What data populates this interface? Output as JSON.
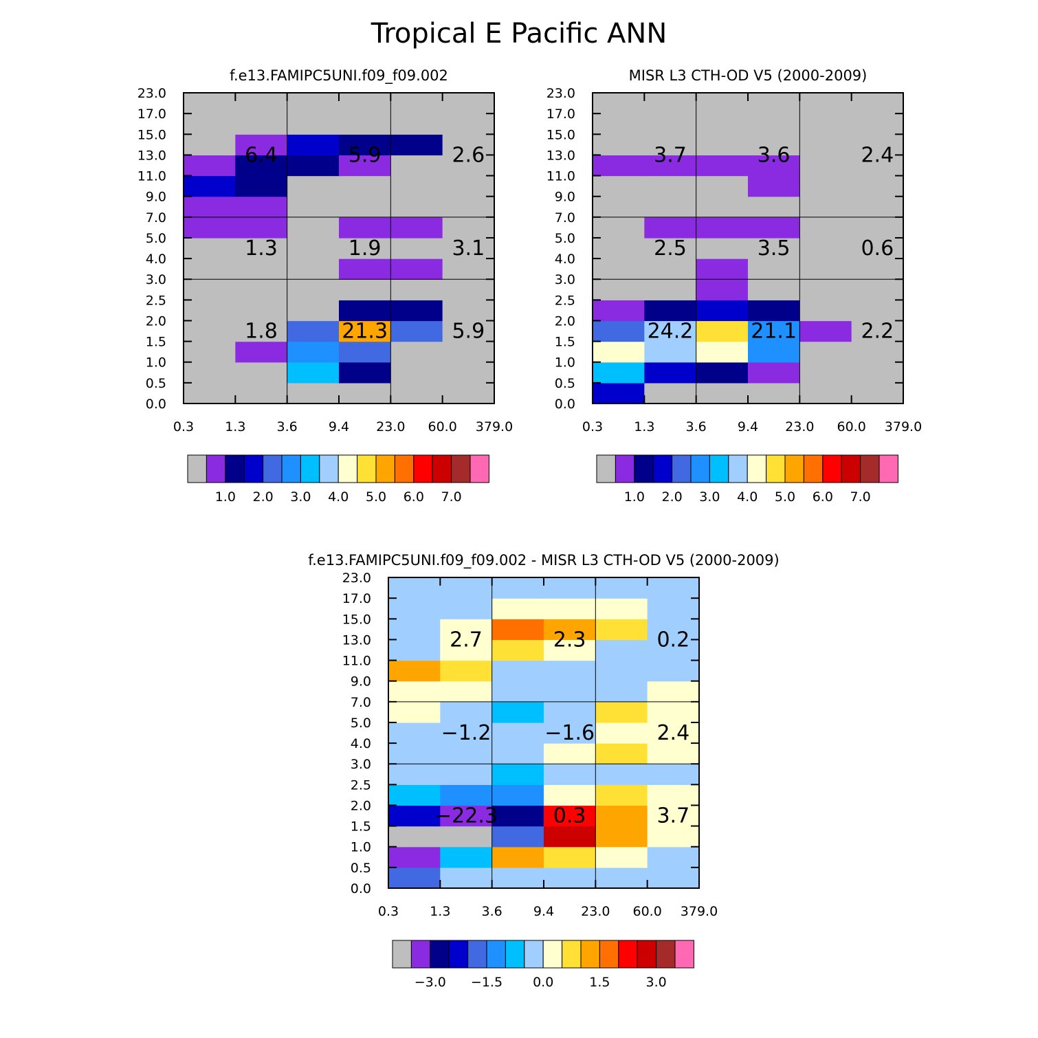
{
  "page_title": "Tropical E Pacific ANN",
  "x_tick_labels": [
    "0.3",
    "1.3",
    "3.6",
    "9.4",
    "23.0",
    "60.0",
    "379.0"
  ],
  "y_tick_labels": [
    "0.0",
    "0.5",
    "1.0",
    "1.5",
    "2.0",
    "2.5",
    "3.0",
    "4.0",
    "5.0",
    "7.0",
    "9.0",
    "11.0",
    "13.0",
    "15.0",
    "17.0",
    "23.0"
  ],
  "colors": {
    "palette": [
      "#bebebe",
      "#8a2be2",
      "#00008b",
      "#0000cd",
      "#4169e1",
      "#1e90ff",
      "#00bfff",
      "#a0cfff",
      "#ffffd0",
      "#ffe135",
      "#ffa500",
      "#ff7000",
      "#ff0000",
      "#cd0000",
      "#a52a2a",
      "#ff69b4"
    ]
  },
  "chart_data": [
    {
      "type": "heatmap",
      "title": "f.e13.FAMIPC5UNI.f09_f09.002",
      "grid_note": "cells[row][col], row 0 = bottom (0.0-0.5), col 0 = left (0.3-1.3); values are palette color indices",
      "cells": [
        [
          0,
          0,
          0,
          0,
          0,
          0
        ],
        [
          0,
          0,
          6,
          2,
          0,
          0
        ],
        [
          0,
          1,
          5,
          4,
          0,
          0
        ],
        [
          0,
          0,
          4,
          10,
          4,
          0
        ],
        [
          0,
          0,
          0,
          2,
          2,
          0
        ],
        [
          0,
          0,
          0,
          0,
          0,
          0
        ],
        [
          0,
          0,
          0,
          1,
          1,
          0
        ],
        [
          0,
          0,
          0,
          0,
          0,
          0
        ],
        [
          1,
          1,
          0,
          1,
          1,
          0
        ],
        [
          1,
          1,
          0,
          0,
          0,
          0
        ],
        [
          3,
          2,
          0,
          0,
          0,
          0
        ],
        [
          1,
          2,
          2,
          1,
          0,
          0
        ],
        [
          0,
          1,
          3,
          2,
          2,
          0
        ],
        [
          0,
          0,
          0,
          0,
          0,
          0
        ],
        [
          0,
          0,
          0,
          0,
          0,
          0
        ]
      ],
      "section_totals": [
        {
          "label": "6.4",
          "col": 1,
          "band": "high"
        },
        {
          "label": "5.9",
          "col": 3,
          "band": "high"
        },
        {
          "label": "2.6",
          "col": 5,
          "band": "high"
        },
        {
          "label": "1.3",
          "col": 1,
          "band": "mid"
        },
        {
          "label": "1.9",
          "col": 3,
          "band": "mid"
        },
        {
          "label": "3.1",
          "col": 5,
          "band": "mid"
        },
        {
          "label": "1.8",
          "col": 1,
          "band": "low"
        },
        {
          "label": "21.3",
          "col": 3,
          "band": "low"
        },
        {
          "label": "5.9",
          "col": 5,
          "band": "low"
        }
      ],
      "colorbar": {
        "labels": [
          "1.0",
          "2.0",
          "3.0",
          "4.0",
          "5.0",
          "6.0",
          "7.0"
        ]
      }
    },
    {
      "type": "heatmap",
      "title": "MISR L3 CTH-OD V5 (2000-2009)",
      "grid_note": "cells[row][col], row 0 = bottom (0.0-0.5), col 0 = left (0.3-1.3); values are palette color indices",
      "cells": [
        [
          3,
          0,
          0,
          0,
          0,
          0
        ],
        [
          6,
          3,
          2,
          1,
          0,
          0
        ],
        [
          8,
          7,
          8,
          5,
          0,
          0
        ],
        [
          4,
          7,
          9,
          5,
          1,
          0
        ],
        [
          1,
          2,
          3,
          2,
          0,
          0
        ],
        [
          0,
          0,
          1,
          0,
          0,
          0
        ],
        [
          0,
          0,
          1,
          0,
          0,
          0
        ],
        [
          0,
          0,
          0,
          0,
          0,
          0
        ],
        [
          0,
          1,
          1,
          1,
          0,
          0
        ],
        [
          0,
          0,
          0,
          0,
          0,
          0
        ],
        [
          0,
          0,
          0,
          1,
          0,
          0
        ],
        [
          1,
          1,
          1,
          1,
          0,
          0
        ],
        [
          0,
          0,
          0,
          0,
          0,
          0
        ],
        [
          0,
          0,
          0,
          0,
          0,
          0
        ],
        [
          0,
          0,
          0,
          0,
          0,
          0
        ]
      ],
      "section_totals": [
        {
          "label": "3.7",
          "col": 1,
          "band": "high"
        },
        {
          "label": "3.6",
          "col": 3,
          "band": "high"
        },
        {
          "label": "2.4",
          "col": 5,
          "band": "high"
        },
        {
          "label": "2.5",
          "col": 1,
          "band": "mid"
        },
        {
          "label": "3.5",
          "col": 3,
          "band": "mid"
        },
        {
          "label": "0.6",
          "col": 5,
          "band": "mid"
        },
        {
          "label": "24.2",
          "col": 1,
          "band": "low"
        },
        {
          "label": "21.1",
          "col": 3,
          "band": "low"
        },
        {
          "label": "2.2",
          "col": 5,
          "band": "low"
        }
      ],
      "colorbar": {
        "labels": [
          "1.0",
          "2.0",
          "3.0",
          "4.0",
          "5.0",
          "6.0",
          "7.0"
        ]
      }
    },
    {
      "type": "heatmap",
      "title": "f.e13.FAMIPC5UNI.f09_f09.002 - MISR L3 CTH-OD V5 (2000-2009)",
      "grid_note": "cells[row][col], row 0 = bottom (0.0-0.5), col 0 = left (0.3-1.3); values are palette color indices",
      "cells": [
        [
          4,
          7,
          7,
          7,
          7,
          7
        ],
        [
          1,
          6,
          10,
          9,
          8,
          7
        ],
        [
          0,
          0,
          4,
          13,
          10,
          8
        ],
        [
          3,
          1,
          2,
          12,
          10,
          8
        ],
        [
          6,
          5,
          5,
          8,
          9,
          8
        ],
        [
          7,
          7,
          6,
          7,
          7,
          7
        ],
        [
          7,
          7,
          7,
          8,
          9,
          8
        ],
        [
          7,
          7,
          7,
          7,
          8,
          8
        ],
        [
          8,
          7,
          6,
          7,
          9,
          8
        ],
        [
          8,
          8,
          7,
          7,
          7,
          8
        ],
        [
          10,
          9,
          7,
          7,
          7,
          7
        ],
        [
          7,
          8,
          9,
          8,
          7,
          7
        ],
        [
          7,
          8,
          11,
          10,
          9,
          7
        ],
        [
          7,
          7,
          8,
          8,
          8,
          7
        ],
        [
          7,
          7,
          7,
          7,
          7,
          7
        ]
      ],
      "section_totals": [
        {
          "label": "2.7",
          "col": 1,
          "band": "high"
        },
        {
          "label": "2.3",
          "col": 3,
          "band": "high"
        },
        {
          "label": "0.2",
          "col": 5,
          "band": "high"
        },
        {
          "label": "−1.2",
          "col": 1,
          "band": "mid"
        },
        {
          "label": "−1.6",
          "col": 3,
          "band": "mid"
        },
        {
          "label": "2.4",
          "col": 5,
          "band": "mid"
        },
        {
          "label": "−22.3",
          "col": 1,
          "band": "low"
        },
        {
          "label": "0.3",
          "col": 3,
          "band": "low"
        },
        {
          "label": "3.7",
          "col": 5,
          "band": "low"
        }
      ],
      "colorbar": {
        "labels": [
          "−3.0",
          "−1.5",
          "0.0",
          "1.5",
          "3.0"
        ]
      }
    }
  ]
}
